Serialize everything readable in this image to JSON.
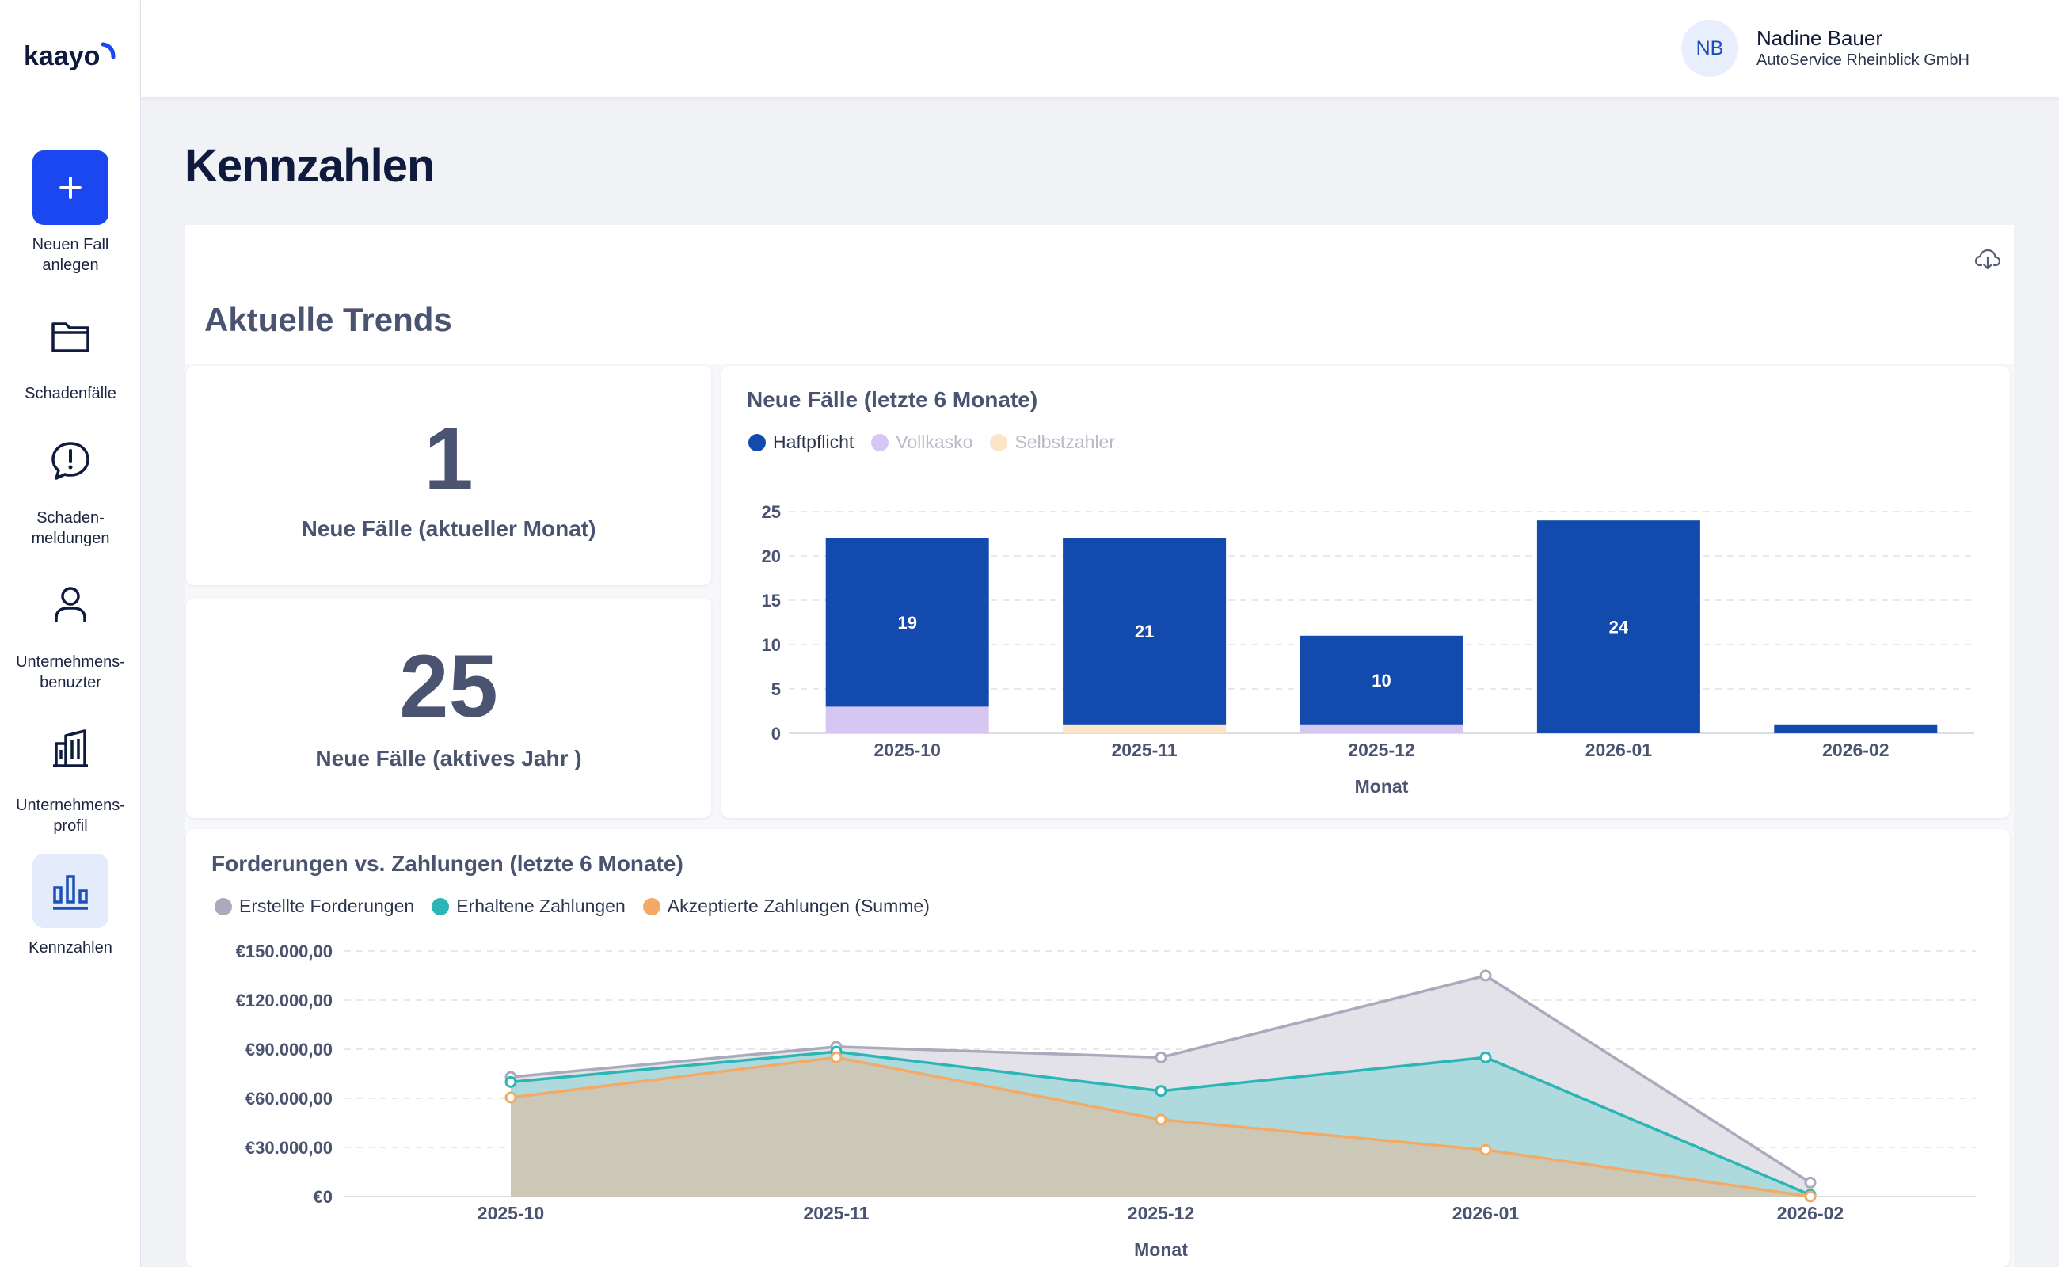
{
  "app": {
    "logo_text": "kaayo"
  },
  "sidebar": {
    "items": [
      {
        "label": "Neuen Fall\nanlegen"
      },
      {
        "label": "Schadenfälle"
      },
      {
        "label": "Schaden-\nmeldungen"
      },
      {
        "label": "Unternehmens-\nbenuzter"
      },
      {
        "label": "Unternehmens-\nprofil"
      },
      {
        "label": "Kennzahlen"
      }
    ]
  },
  "user": {
    "initials": "NB",
    "name": "Nadine Bauer",
    "company": "AutoService Rheinblick GmbH"
  },
  "page": {
    "title": "Kennzahlen",
    "section_title": "Aktuelle Trends"
  },
  "kpis": [
    {
      "value": "1",
      "label": "Neue Fälle (aktueller Monat)"
    },
    {
      "value": "25",
      "label": "Neue Fälle (aktives Jahr )"
    }
  ],
  "colors": {
    "haftpflicht": "#124aad",
    "vollkasko": "#d6c6f2",
    "selbstzahler": "#fbe4c8",
    "forderungen": "#a9abbd",
    "zahlungen": "#2bb5b5",
    "akzeptiert": "#f2aa66"
  },
  "chart_data": [
    {
      "type": "bar",
      "stacked": true,
      "title": "Neue Fälle (letzte 6 Monate)",
      "xlabel": "Monat",
      "ylabel": "",
      "categories": [
        "2025-10",
        "2025-11",
        "2025-12",
        "2026-01",
        "2026-02"
      ],
      "ylim": [
        0,
        25
      ],
      "yticks": [
        "0",
        "5",
        "10",
        "15",
        "20",
        "25"
      ],
      "grid": true,
      "legend_position": "top-left",
      "series": [
        {
          "name": "Haftpflicht",
          "values": [
            19,
            21,
            10,
            24,
            1
          ],
          "labels": [
            "19",
            "21",
            "10",
            "24",
            ""
          ],
          "active": true
        },
        {
          "name": "Vollkasko",
          "values": [
            3,
            0,
            1,
            0,
            0
          ],
          "active": false
        },
        {
          "name": "Selbstzahler",
          "values": [
            0,
            1,
            0,
            0,
            0
          ],
          "active": false
        }
      ]
    },
    {
      "type": "area",
      "title": "Forderungen vs. Zahlungen (letzte 6 Monate)",
      "xlabel": "Monat",
      "ylabel": "",
      "categories": [
        "2025-10",
        "2025-11",
        "2025-12",
        "2026-01",
        "2026-02"
      ],
      "ylim": [
        0,
        150000
      ],
      "yticks": [
        "€0",
        "€30.000,00",
        "€60.000,00",
        "€90.000,00",
        "€120.000,00",
        "€150.000,00"
      ],
      "grid": true,
      "legend_position": "top-left",
      "series": [
        {
          "name": "Erstellte Forderungen",
          "values": [
            73000,
            91500,
            85000,
            135000,
            8500
          ]
        },
        {
          "name": "Erhaltene Zahlungen",
          "values": [
            70000,
            88500,
            64500,
            85000,
            1000
          ]
        },
        {
          "name": "Akzeptierte Zahlungen (Summe)",
          "values": [
            60500,
            85000,
            47000,
            28500,
            0
          ]
        }
      ]
    }
  ]
}
